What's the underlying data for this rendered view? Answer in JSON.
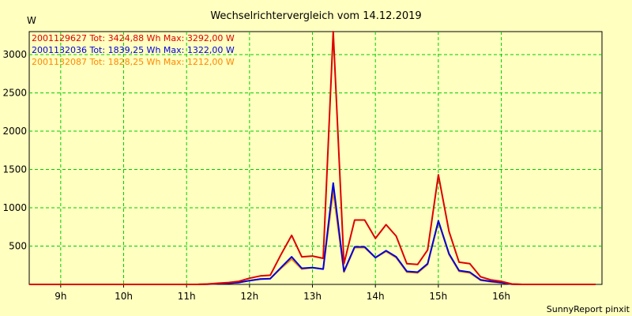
{
  "chart_data": {
    "type": "line",
    "title": "Wechselrichtervergleich vom 14.12.2019",
    "ylabel": "W",
    "xlabel": "",
    "footer": "SunnyReport pinxit",
    "grid": true,
    "legend_position": "top-left",
    "ylim": [
      0,
      3300
    ],
    "xlim": [
      8.5,
      17.6
    ],
    "y_ticks": [
      500,
      1000,
      1500,
      2000,
      2500,
      3000
    ],
    "x_ticks": [
      {
        "value": 9,
        "label": "9h"
      },
      {
        "value": 10,
        "label": "10h"
      },
      {
        "value": 11,
        "label": "11h"
      },
      {
        "value": 12,
        "label": "12h"
      },
      {
        "value": 13,
        "label": "13h"
      },
      {
        "value": 14,
        "label": "14h"
      },
      {
        "value": 15,
        "label": "15h"
      },
      {
        "value": 16,
        "label": "16h"
      }
    ],
    "x": [
      8.5,
      8.67,
      8.83,
      9.0,
      9.17,
      9.33,
      9.5,
      9.67,
      9.83,
      10.0,
      10.17,
      10.33,
      10.5,
      10.67,
      10.83,
      11.0,
      11.17,
      11.33,
      11.5,
      11.67,
      11.83,
      12.0,
      12.17,
      12.33,
      12.5,
      12.67,
      12.83,
      13.0,
      13.17,
      13.33,
      13.5,
      13.67,
      13.83,
      14.0,
      14.17,
      14.33,
      14.5,
      14.67,
      14.83,
      15.0,
      15.17,
      15.33,
      15.5,
      15.67,
      15.83,
      16.0,
      16.17,
      16.33,
      16.5,
      16.67,
      16.83,
      17.0,
      17.17,
      17.33,
      17.5
    ],
    "series": [
      {
        "name": "2001129627 Tot: 3424,88 Wh Max: 3292,00 W",
        "color": "#dd0000",
        "values": [
          0,
          0,
          0,
          0,
          0,
          0,
          0,
          0,
          0,
          0,
          0,
          0,
          0,
          0,
          0,
          0,
          0,
          5,
          15,
          25,
          40,
          80,
          110,
          120,
          390,
          640,
          360,
          370,
          340,
          3300,
          270,
          840,
          840,
          600,
          780,
          630,
          270,
          260,
          450,
          1430,
          690,
          290,
          270,
          100,
          60,
          40,
          5,
          0,
          0,
          0,
          0,
          0,
          0,
          0,
          0
        ]
      },
      {
        "name": "2001132036 Tot: 1839,25 Wh Max: 1322,00 W",
        "color": "#0000dd",
        "values": [
          0,
          0,
          0,
          0,
          0,
          0,
          0,
          0,
          0,
          0,
          0,
          0,
          0,
          0,
          0,
          0,
          0,
          3,
          10,
          15,
          25,
          50,
          70,
          75,
          220,
          360,
          210,
          220,
          200,
          1322,
          170,
          490,
          490,
          350,
          440,
          360,
          170,
          160,
          270,
          830,
          400,
          180,
          160,
          60,
          40,
          25,
          3,
          0,
          0,
          0,
          0,
          0,
          0,
          0,
          0
        ]
      },
      {
        "name": "2001132087 Tot: 1828,25 Wh Max: 1212,00 W",
        "color": "#ff8800",
        "values": [
          0,
          0,
          0,
          0,
          0,
          0,
          0,
          0,
          0,
          0,
          0,
          0,
          0,
          0,
          0,
          0,
          0,
          3,
          10,
          15,
          25,
          50,
          70,
          75,
          210,
          330,
          200,
          220,
          200,
          1212,
          160,
          480,
          480,
          350,
          430,
          350,
          160,
          150,
          260,
          820,
          390,
          170,
          150,
          55,
          35,
          20,
          3,
          0,
          0,
          0,
          0,
          0,
          0,
          0,
          0
        ]
      }
    ]
  }
}
